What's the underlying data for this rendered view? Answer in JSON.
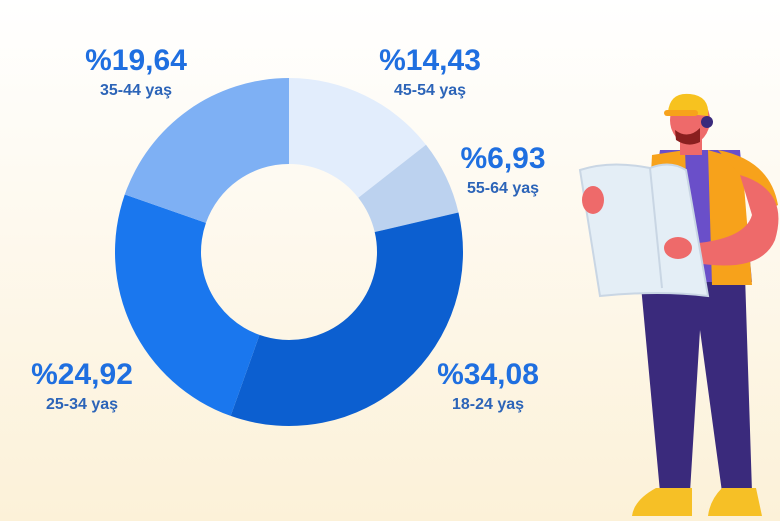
{
  "chart_data": {
    "type": "donut",
    "categories": [
      "45-54 yaş",
      "55-64 yaş",
      "18-24 yaş",
      "25-34 yaş",
      "35-44 yaş"
    ],
    "values": [
      14.43,
      6.93,
      34.08,
      24.92,
      19.64
    ],
    "value_labels": [
      "%14,43",
      "%6,93",
      "%34,08",
      "%24,92",
      "%19,64"
    ],
    "colors": [
      "#e2edfc",
      "#bcd2ef",
      "#0c5fd0",
      "#1a77ee",
      "#7eb0f4"
    ]
  }
}
